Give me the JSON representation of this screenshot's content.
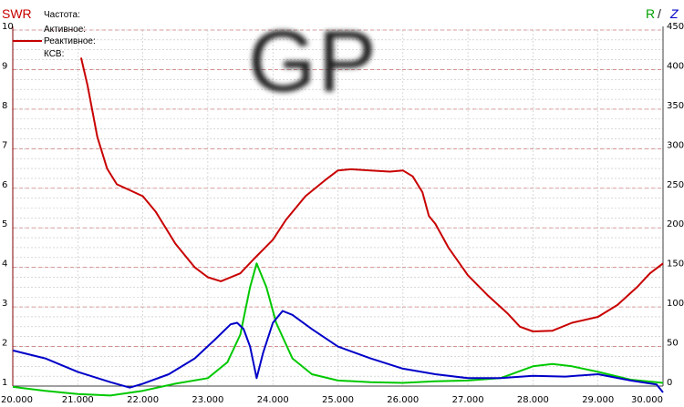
{
  "header": {
    "left_title": "SWR",
    "right_title_r": "R",
    "right_title_sep": "/",
    "right_title_z": "Z",
    "legend": [
      "Частота:",
      "Активное:",
      "Реактивное:",
      "КСВ:"
    ],
    "watermark": "GP"
  },
  "colors": {
    "swr": "#c80000",
    "r": "#00c800",
    "z": "#0000c8",
    "grid_red": "#d08080",
    "grid_gray": "#c0c0c0"
  },
  "chart_data": {
    "type": "line",
    "x_ticks": [
      "20.000",
      "21.000",
      "22.000",
      "23.000",
      "24.000",
      "25.000",
      "26.000",
      "27.000",
      "28.000",
      "29.000",
      "30.000"
    ],
    "y_left_ticks": [
      "1",
      "2",
      "3",
      "4",
      "5",
      "6",
      "7",
      "8",
      "9",
      "10"
    ],
    "y_right_ticks": [
      "0",
      "50",
      "100",
      "150",
      "200",
      "250",
      "300",
      "350",
      "400",
      "450"
    ],
    "xlim": [
      20,
      30
    ],
    "ylim_left": [
      1,
      10
    ],
    "ylim_right": [
      0,
      450
    ],
    "grid": true,
    "series": [
      {
        "name": "SWR",
        "axis": "left",
        "color": "#c80000",
        "x": [
          21.05,
          21.15,
          21.3,
          21.45,
          21.6,
          21.8,
          22.0,
          22.2,
          22.5,
          22.8,
          23.0,
          23.2,
          23.5,
          23.7,
          24.0,
          24.2,
          24.5,
          24.8,
          25.0,
          25.2,
          25.5,
          25.8,
          26.0,
          26.15,
          26.3,
          26.4,
          26.5,
          26.7,
          27.0,
          27.3,
          27.6,
          27.8,
          28.0,
          28.3,
          28.6,
          29.0,
          29.3,
          29.6,
          29.8,
          30.0
        ],
        "y": [
          9.3,
          8.6,
          7.3,
          6.5,
          6.1,
          5.95,
          5.8,
          5.4,
          4.6,
          4.0,
          3.75,
          3.65,
          3.85,
          4.2,
          4.7,
          5.2,
          5.8,
          6.2,
          6.45,
          6.48,
          6.45,
          6.42,
          6.45,
          6.3,
          5.9,
          5.3,
          5.1,
          4.5,
          3.8,
          3.3,
          2.85,
          2.5,
          2.38,
          2.4,
          2.6,
          2.75,
          3.05,
          3.5,
          3.85,
          4.1
        ]
      },
      {
        "name": "R",
        "axis": "right",
        "color": "#00c800",
        "x": [
          20.0,
          20.5,
          21.0,
          21.5,
          22.0,
          22.5,
          23.0,
          23.3,
          23.5,
          23.65,
          23.75,
          23.9,
          24.05,
          24.3,
          24.6,
          25.0,
          25.5,
          26.0,
          26.5,
          27.0,
          27.5,
          28.0,
          28.3,
          28.6,
          29.0,
          29.5,
          30.0
        ],
        "y": [
          -1,
          -6,
          -10,
          -12,
          -6,
          3,
          10,
          30,
          65,
          125,
          155,
          125,
          80,
          35,
          15,
          7,
          5,
          4,
          6,
          7,
          10,
          25,
          28,
          25,
          18,
          8,
          4
        ]
      },
      {
        "name": "Z",
        "axis": "right",
        "color": "#0000c8",
        "x": [
          20.0,
          20.5,
          21.0,
          21.5,
          21.8,
          22.0,
          22.4,
          22.8,
          23.1,
          23.35,
          23.45,
          23.55,
          23.65,
          23.75,
          23.85,
          24.0,
          24.15,
          24.3,
          24.6,
          25.0,
          25.5,
          26.0,
          26.5,
          27.0,
          27.5,
          28.0,
          28.5,
          29.0,
          29.5,
          29.9,
          30.0
        ],
        "y": [
          45,
          35,
          18,
          5,
          -2,
          3,
          15,
          35,
          58,
          78,
          80,
          72,
          50,
          10,
          42,
          80,
          95,
          90,
          72,
          50,
          35,
          22,
          15,
          10,
          10,
          13,
          12,
          15,
          7,
          2,
          -8
        ]
      }
    ]
  }
}
